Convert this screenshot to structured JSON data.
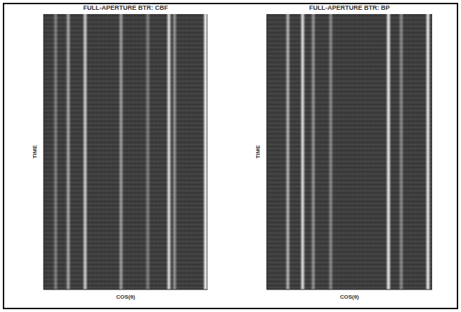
{
  "chart_data": [
    {
      "type": "heatmap",
      "title": "FULL-APERTURE BTR: CBF",
      "x_label": "COS(θ)",
      "y_label": "TIME",
      "xlim": [
        -1,
        1
      ],
      "tick_labels": false,
      "color_range": [
        0,
        1
      ],
      "x": [
        -0.854,
        -0.7,
        -0.494,
        -0.056,
        0.27,
        0.528,
        0.597,
        0.974
      ],
      "values": [
        0.35,
        0.55,
        0.75,
        0.5,
        0.35,
        0.85,
        0.45,
        0.95
      ]
    },
    {
      "type": "heatmap",
      "title": "FULL-APERTURE BTR: BP",
      "x_label": "COS(θ)",
      "y_label": "TIME",
      "xlim": [
        -1,
        1
      ],
      "tick_labels": false,
      "color_range": [
        0,
        1
      ],
      "x": [
        -0.745,
        -0.566,
        -0.438,
        -0.226,
        0.472,
        0.626,
        0.949
      ],
      "values": [
        0.6,
        0.85,
        0.45,
        0.4,
        0.9,
        0.4,
        0.9
      ]
    }
  ]
}
